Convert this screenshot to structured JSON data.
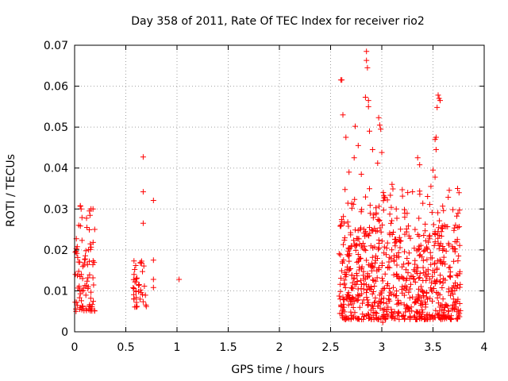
{
  "chart_data": {
    "type": "scatter",
    "title": "Day 358 of 2011, Rate Of TEC Index for receiver rio2",
    "xlabel": "GPS time / hours",
    "ylabel": "ROTI / TECUs",
    "xlim": [
      0,
      4
    ],
    "ylim": [
      0,
      0.07
    ],
    "grid": true,
    "marker": "+",
    "color": "#ff0000",
    "x_ticks": [
      "0",
      "0.5",
      "1",
      "1.5",
      "2",
      "2.5",
      "3",
      "3.5",
      "4"
    ],
    "x_tick_values": [
      0,
      0.5,
      1,
      1.5,
      2,
      2.5,
      3,
      3.5,
      4
    ],
    "y_ticks": [
      "0",
      "0.01",
      "0.02",
      "0.03",
      "0.04",
      "0.05",
      "0.06",
      "0.07"
    ],
    "y_tick_values": [
      0,
      0.01,
      0.02,
      0.03,
      0.04,
      0.05,
      0.06,
      0.07
    ],
    "series": [
      {
        "name": "ROTI",
        "clusters": [
          {
            "x_range": [
              0.0,
              0.2
            ],
            "y_range": [
              0.005,
              0.031
            ],
            "count": 90,
            "seed": 11
          },
          {
            "x_range": [
              0.57,
              0.7
            ],
            "y_range": [
              0.006,
              0.018
            ],
            "count": 40,
            "seed": 23
          },
          {
            "x_range": [
              2.58,
              3.77
            ],
            "y_range": [
              0.003,
              0.025
            ],
            "count": 700,
            "seed": 37
          },
          {
            "x_range": [
              2.58,
              3.77
            ],
            "y_range": [
              0.025,
              0.035
            ],
            "count": 90,
            "seed": 41
          }
        ],
        "points": [
          [
            0.67,
            0.0427
          ],
          [
            0.67,
            0.0342
          ],
          [
            0.67,
            0.0265
          ],
          [
            0.77,
            0.0321
          ],
          [
            0.77,
            0.0175
          ],
          [
            0.77,
            0.0128
          ],
          [
            0.77,
            0.0108
          ],
          [
            1.02,
            0.0128
          ],
          [
            0.12,
            0.0255
          ],
          [
            0.16,
            0.03
          ],
          [
            0.18,
            0.03
          ],
          [
            0.04,
            0.026
          ],
          [
            2.6,
            0.0615
          ],
          [
            2.61,
            0.0615
          ],
          [
            2.62,
            0.053
          ],
          [
            2.65,
            0.0475
          ],
          [
            2.85,
            0.0685
          ],
          [
            2.85,
            0.0663
          ],
          [
            2.86,
            0.0645
          ],
          [
            2.84,
            0.0573
          ],
          [
            2.87,
            0.0565
          ],
          [
            2.87,
            0.055
          ],
          [
            2.88,
            0.049
          ],
          [
            2.91,
            0.0445
          ],
          [
            2.97,
            0.0523
          ],
          [
            2.98,
            0.0505
          ],
          [
            2.99,
            0.0495
          ],
          [
            3.0,
            0.0438
          ],
          [
            2.96,
            0.0412
          ],
          [
            2.74,
            0.0502
          ],
          [
            2.77,
            0.0455
          ],
          [
            2.73,
            0.0425
          ],
          [
            3.55,
            0.0578
          ],
          [
            3.56,
            0.057
          ],
          [
            3.57,
            0.0565
          ],
          [
            3.54,
            0.0548
          ],
          [
            3.53,
            0.0475
          ],
          [
            3.52,
            0.047
          ],
          [
            3.53,
            0.0445
          ],
          [
            3.5,
            0.0395
          ],
          [
            3.35,
            0.0425
          ],
          [
            3.37,
            0.0408
          ],
          [
            3.48,
            0.0355
          ],
          [
            3.52,
            0.0378
          ],
          [
            3.02,
            0.0332
          ],
          [
            3.03,
            0.0328
          ],
          [
            3.2,
            0.0347
          ],
          [
            3.74,
            0.035
          ],
          [
            2.68,
            0.039
          ],
          [
            2.8,
            0.0385
          ],
          [
            3.1,
            0.036
          ],
          [
            3.3,
            0.0342
          ],
          [
            3.01,
            0.0023
          ],
          [
            3.65,
            0.0036
          ],
          [
            2.95,
            0.0045
          ],
          [
            3.4,
            0.0048
          ]
        ]
      }
    ]
  }
}
